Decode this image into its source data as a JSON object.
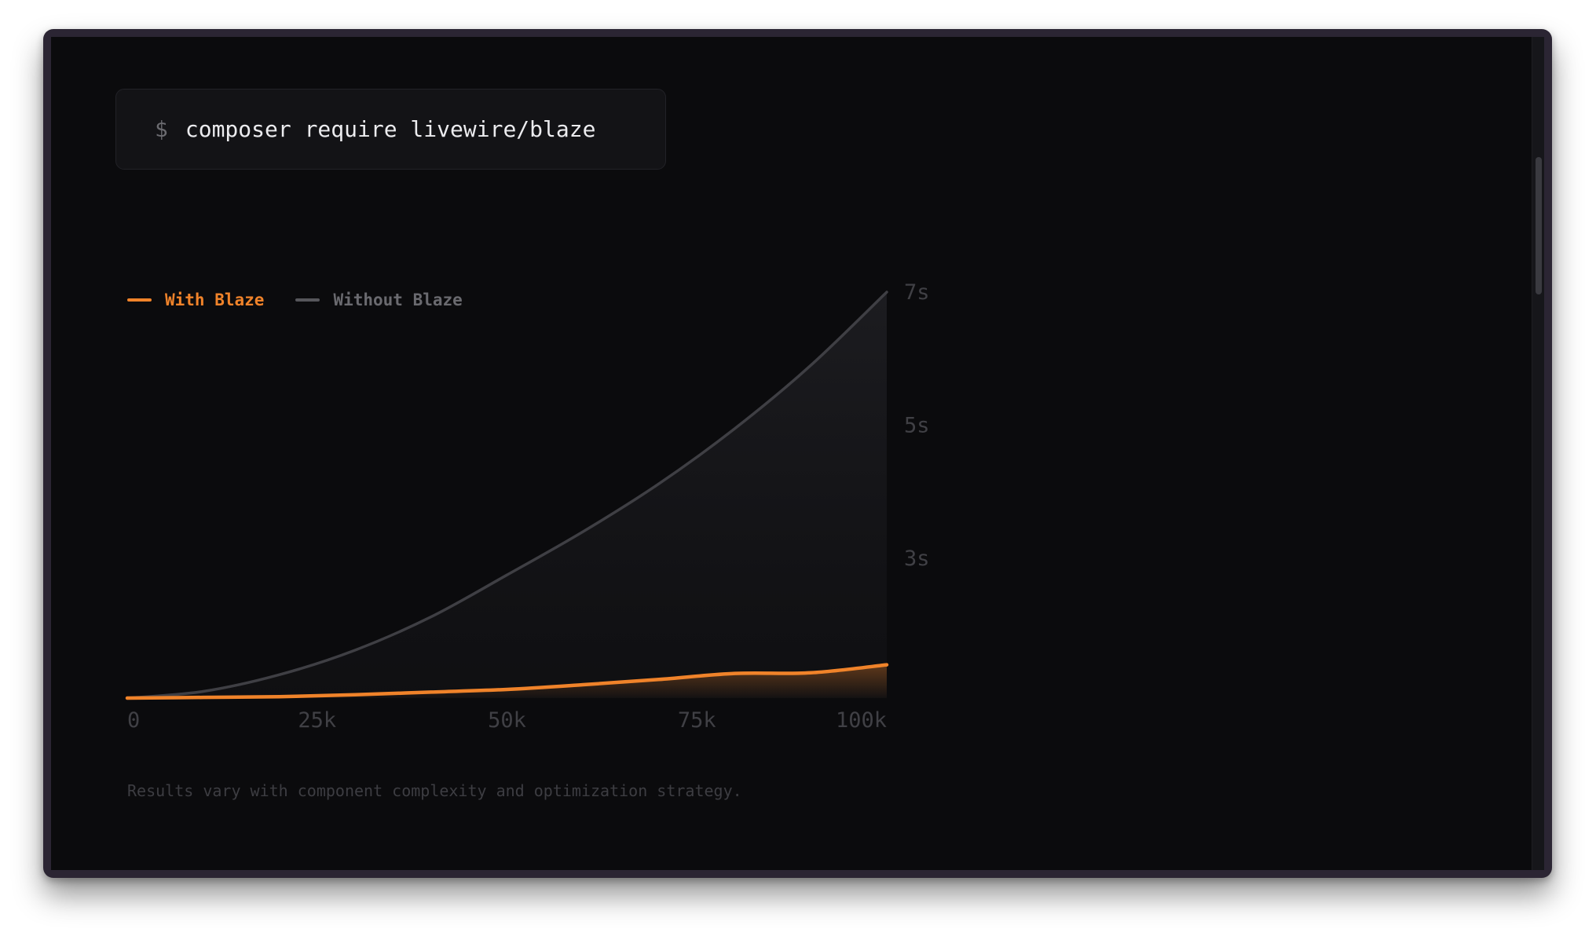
{
  "terminal": {
    "prompt": "$",
    "command": "composer require livewire/blaze"
  },
  "chart_data": {
    "type": "area",
    "xlabel": "",
    "ylabel": "",
    "x_ticks": [
      "0",
      "25k",
      "50k",
      "75k",
      "100k"
    ],
    "y_ticks": [
      "7s",
      "5s",
      "3s"
    ],
    "xlim": [
      0,
      100000
    ],
    "ylim": [
      0.9,
      7
    ],
    "grid": false,
    "legend_position": "top-left",
    "series": [
      {
        "name": "With Blaze",
        "color": "#f0832a",
        "x": [
          0,
          10000,
          20000,
          30000,
          40000,
          50000,
          60000,
          70000,
          80000,
          90000,
          100000
        ],
        "values": [
          0.9,
          0.91,
          0.92,
          0.95,
          0.99,
          1.03,
          1.1,
          1.18,
          1.27,
          1.28,
          1.4
        ]
      },
      {
        "name": "Without Blaze",
        "color": "#4a4a4f",
        "x": [
          0,
          10000,
          20000,
          30000,
          40000,
          50000,
          60000,
          70000,
          80000,
          90000,
          100000
        ],
        "values": [
          0.9,
          1.0,
          1.25,
          1.62,
          2.12,
          2.75,
          3.4,
          4.12,
          4.95,
          5.9,
          7.0
        ]
      }
    ]
  },
  "footnote": "Results vary with component complexity and optimization strategy."
}
